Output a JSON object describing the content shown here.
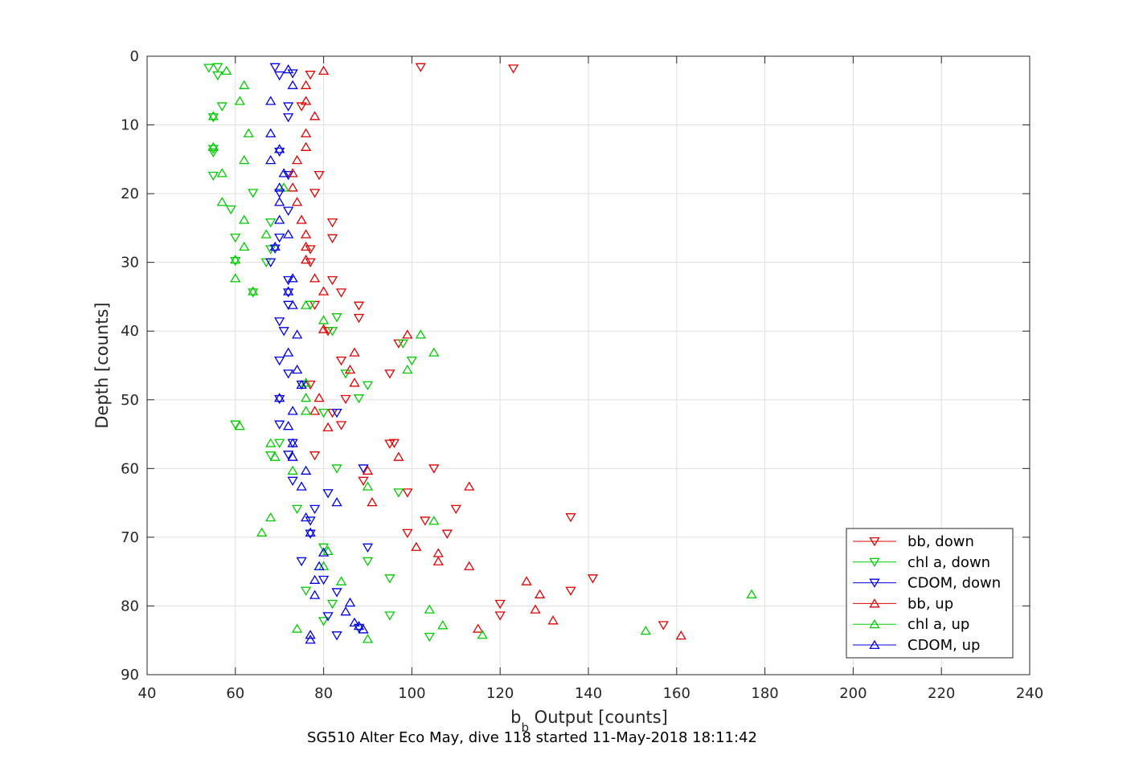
{
  "chart_data": {
    "type": "scatter",
    "title": "",
    "xlabel_main": "b",
    "xlabel_sub": "b",
    "xlabel_rest": " Output [counts]",
    "ylabel": "Depth [counts]",
    "caption": "SG510 Alter Eco May, dive 118 started 11-May-2018 18:11:42",
    "xlim": [
      40,
      240
    ],
    "ylim": [
      0,
      90
    ],
    "y_reversed": true,
    "grid": true,
    "legend_position": "bottom-right",
    "xticks": [
      "40",
      "60",
      "80",
      "100",
      "120",
      "140",
      "160",
      "180",
      "200",
      "220",
      "240"
    ],
    "yticks": [
      "0",
      "10",
      "20",
      "30",
      "40",
      "50",
      "60",
      "70",
      "80",
      "90"
    ],
    "series": [
      {
        "name": "bb, down",
        "color": "#e00000",
        "marker": "triangle-down",
        "points": [
          [
            102,
            1.6
          ],
          [
            123,
            1.8
          ],
          [
            77,
            2.7
          ],
          [
            75,
            7.3
          ],
          [
            79,
            17.3
          ],
          [
            78,
            19.9
          ],
          [
            82,
            24.2
          ],
          [
            82,
            26.5
          ],
          [
            77,
            28.1
          ],
          [
            77,
            30.0
          ],
          [
            82,
            32.6
          ],
          [
            84,
            34.4
          ],
          [
            78,
            36.2
          ],
          [
            88,
            36.3
          ],
          [
            88,
            38.1
          ],
          [
            81,
            40.0
          ],
          [
            97,
            41.8
          ],
          [
            84,
            44.3
          ],
          [
            95,
            46.2
          ],
          [
            77,
            47.8
          ],
          [
            85,
            49.9
          ],
          [
            82,
            51.9
          ],
          [
            84,
            53.7
          ],
          [
            96,
            56.3
          ],
          [
            95,
            56.4
          ],
          [
            78,
            58.1
          ],
          [
            105,
            60.0
          ],
          [
            89,
            61.8
          ],
          [
            99,
            63.5
          ],
          [
            110,
            65.9
          ],
          [
            136,
            67.1
          ],
          [
            103,
            67.6
          ],
          [
            108,
            69.5
          ],
          [
            99,
            69.4
          ],
          [
            141,
            76.0
          ],
          [
            136,
            77.8
          ],
          [
            120,
            79.7
          ],
          [
            120,
            81.4
          ],
          [
            157,
            82.8
          ]
        ]
      },
      {
        "name": "chl a, down",
        "color": "#00cc00",
        "marker": "triangle-down",
        "points": [
          [
            54,
            1.7
          ],
          [
            56,
            1.6
          ],
          [
            56,
            2.8
          ],
          [
            57,
            7.3
          ],
          [
            55,
            8.9
          ],
          [
            55,
            13.5
          ],
          [
            55,
            14.0
          ],
          [
            55,
            17.4
          ],
          [
            64,
            19.9
          ],
          [
            59,
            22.3
          ],
          [
            68,
            24.2
          ],
          [
            60,
            26.4
          ],
          [
            68,
            28.1
          ],
          [
            60,
            29.8
          ],
          [
            67,
            30.0
          ],
          [
            64,
            34.4
          ],
          [
            77,
            36.2
          ],
          [
            83,
            38.0
          ],
          [
            82,
            40.0
          ],
          [
            98,
            41.8
          ],
          [
            100,
            44.3
          ],
          [
            85,
            46.2
          ],
          [
            90,
            47.9
          ],
          [
            88,
            49.8
          ],
          [
            80,
            51.9
          ],
          [
            60,
            53.6
          ],
          [
            70,
            56.3
          ],
          [
            68,
            58.1
          ],
          [
            83,
            60.0
          ],
          [
            97,
            63.5
          ],
          [
            74,
            65.9
          ],
          [
            80,
            71.5
          ],
          [
            90,
            73.5
          ],
          [
            95,
            76.0
          ],
          [
            76,
            77.8
          ],
          [
            82,
            79.7
          ],
          [
            95,
            81.4
          ],
          [
            80,
            82.2
          ],
          [
            104,
            84.5
          ]
        ]
      },
      {
        "name": "CDOM, down",
        "color": "#0000e0",
        "marker": "triangle-down",
        "points": [
          [
            69,
            1.6
          ],
          [
            73,
            2.5
          ],
          [
            70,
            2.8
          ],
          [
            72,
            7.3
          ],
          [
            72,
            8.9
          ],
          [
            70,
            13.9
          ],
          [
            72,
            17.3
          ],
          [
            70,
            19.9
          ],
          [
            72,
            22.5
          ],
          [
            70,
            26.4
          ],
          [
            69,
            28.0
          ],
          [
            68,
            30.0
          ],
          [
            72,
            32.6
          ],
          [
            72,
            34.4
          ],
          [
            72,
            36.2
          ],
          [
            70,
            38.6
          ],
          [
            71,
            40.0
          ],
          [
            70,
            44.3
          ],
          [
            72,
            46.2
          ],
          [
            75,
            47.8
          ],
          [
            70,
            49.9
          ],
          [
            83,
            51.9
          ],
          [
            70,
            53.6
          ],
          [
            73,
            56.3
          ],
          [
            72,
            58.0
          ],
          [
            89,
            60.0
          ],
          [
            73,
            61.8
          ],
          [
            81,
            63.6
          ],
          [
            78,
            65.9
          ],
          [
            77,
            67.6
          ],
          [
            77,
            69.5
          ],
          [
            90,
            71.5
          ],
          [
            75,
            73.5
          ],
          [
            80,
            76.2
          ],
          [
            83,
            78.0
          ],
          [
            81,
            81.5
          ],
          [
            88,
            83.2
          ],
          [
            83,
            84.3
          ]
        ]
      },
      {
        "name": "bb, up",
        "color": "#e00000",
        "marker": "triangle-up",
        "points": [
          [
            80,
            2.1
          ],
          [
            76,
            4.2
          ],
          [
            76,
            6.5
          ],
          [
            78,
            8.7
          ],
          [
            76,
            11.2
          ],
          [
            76,
            13.2
          ],
          [
            74,
            15.1
          ],
          [
            73,
            17.0
          ],
          [
            73,
            19.1
          ],
          [
            74,
            21.2
          ],
          [
            75,
            23.8
          ],
          [
            76,
            25.9
          ],
          [
            76,
            27.7
          ],
          [
            76,
            29.6
          ],
          [
            78,
            32.3
          ],
          [
            80,
            34.2
          ],
          [
            80,
            39.7
          ],
          [
            99,
            40.5
          ],
          [
            87,
            43.1
          ],
          [
            86,
            45.6
          ],
          [
            87,
            47.5
          ],
          [
            79,
            49.7
          ],
          [
            78,
            51.6
          ],
          [
            81,
            54.0
          ],
          [
            97,
            58.3
          ],
          [
            90,
            60.3
          ],
          [
            113,
            62.6
          ],
          [
            91,
            64.9
          ],
          [
            106,
            72.3
          ],
          [
            106,
            73.5
          ],
          [
            113,
            74.2
          ],
          [
            101,
            71.4
          ],
          [
            126,
            76.4
          ],
          [
            129,
            78.3
          ],
          [
            128,
            80.5
          ],
          [
            132,
            82.1
          ],
          [
            115,
            83.3
          ],
          [
            161,
            84.3
          ]
        ]
      },
      {
        "name": "chl a, up",
        "color": "#00cc00",
        "marker": "triangle-up",
        "points": [
          [
            58,
            2.1
          ],
          [
            62,
            4.2
          ],
          [
            61,
            6.5
          ],
          [
            55,
            8.7
          ],
          [
            63,
            11.2
          ],
          [
            55,
            13.2
          ],
          [
            62,
            15.1
          ],
          [
            57,
            17.0
          ],
          [
            71,
            19.1
          ],
          [
            57,
            21.2
          ],
          [
            62,
            23.8
          ],
          [
            67,
            25.9
          ],
          [
            62,
            27.7
          ],
          [
            60,
            29.6
          ],
          [
            60,
            32.3
          ],
          [
            64,
            34.2
          ],
          [
            76,
            36.2
          ],
          [
            80,
            38.4
          ],
          [
            102,
            40.5
          ],
          [
            105,
            43.1
          ],
          [
            99,
            45.6
          ],
          [
            76,
            47.5
          ],
          [
            76,
            49.7
          ],
          [
            76,
            51.6
          ],
          [
            61,
            53.8
          ],
          [
            68,
            56.3
          ],
          [
            69,
            58.3
          ],
          [
            73,
            60.3
          ],
          [
            90,
            62.6
          ],
          [
            68,
            67.1
          ],
          [
            105,
            67.6
          ],
          [
            66,
            69.3
          ],
          [
            81,
            72.0
          ],
          [
            80,
            74.2
          ],
          [
            84,
            76.4
          ],
          [
            177,
            78.3
          ],
          [
            104,
            80.5
          ],
          [
            107,
            82.8
          ],
          [
            74,
            83.3
          ],
          [
            116,
            84.2
          ],
          [
            90,
            84.8
          ],
          [
            153,
            83.6
          ]
        ]
      },
      {
        "name": "CDOM, up",
        "color": "#0000e0",
        "marker": "triangle-up",
        "points": [
          [
            72,
            1.9
          ],
          [
            73,
            4.2
          ],
          [
            68,
            6.5
          ],
          [
            68,
            11.2
          ],
          [
            70,
            13.5
          ],
          [
            68,
            15.1
          ],
          [
            71,
            17.0
          ],
          [
            70,
            19.1
          ],
          [
            70,
            21.2
          ],
          [
            70,
            23.8
          ],
          [
            72,
            25.9
          ],
          [
            69,
            27.7
          ],
          [
            73,
            32.3
          ],
          [
            72,
            34.2
          ],
          [
            73,
            36.2
          ],
          [
            74,
            40.5
          ],
          [
            72,
            43.1
          ],
          [
            74,
            45.6
          ],
          [
            75,
            47.8
          ],
          [
            70,
            49.7
          ],
          [
            73,
            51.6
          ],
          [
            72,
            53.8
          ],
          [
            73,
            56.3
          ],
          [
            73,
            58.3
          ],
          [
            76,
            60.3
          ],
          [
            75,
            62.6
          ],
          [
            83,
            64.9
          ],
          [
            76,
            67.1
          ],
          [
            77,
            69.3
          ],
          [
            80,
            72.2
          ],
          [
            79,
            74.2
          ],
          [
            78,
            76.2
          ],
          [
            78,
            78.4
          ],
          [
            86,
            79.5
          ],
          [
            85,
            80.8
          ],
          [
            87,
            82.4
          ],
          [
            89,
            83.4
          ],
          [
            77,
            84.2
          ],
          [
            77,
            84.9
          ],
          [
            88,
            82.9
          ]
        ]
      }
    ]
  }
}
